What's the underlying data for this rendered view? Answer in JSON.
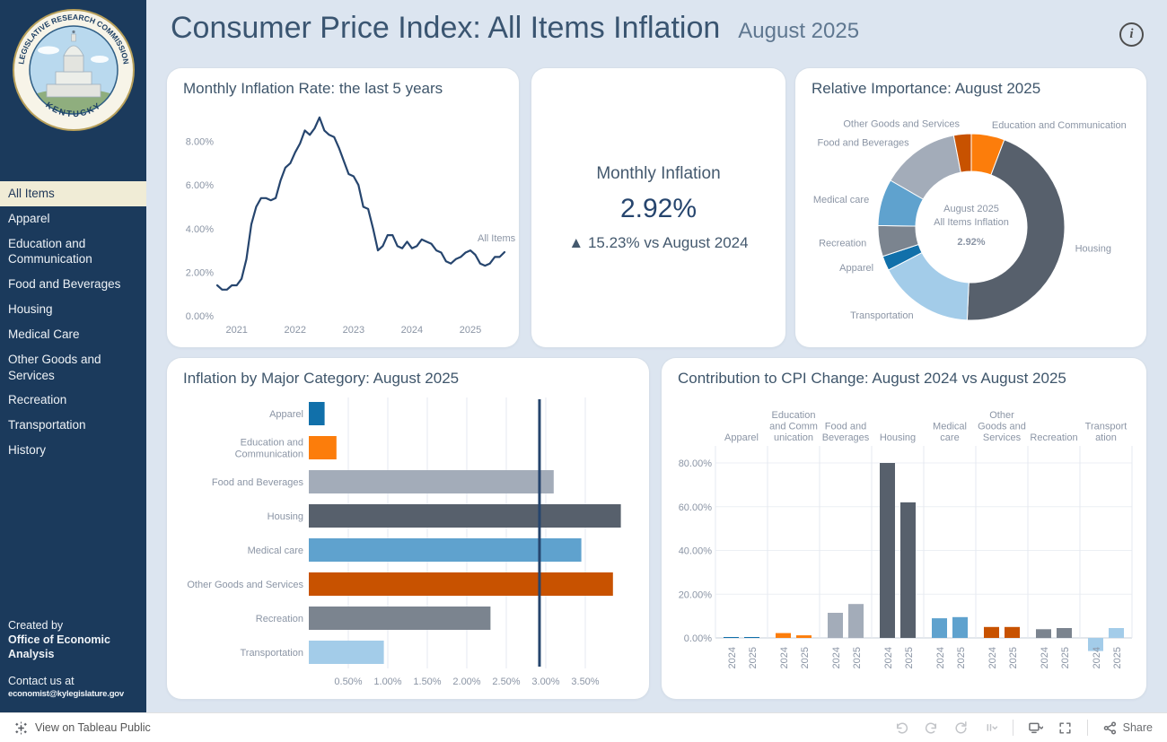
{
  "sidebar": {
    "logo": {
      "ring_text": "LEGISLATIVE RESEARCH COMMISSION",
      "bottom_text": "KENTUCKY"
    },
    "items": [
      {
        "label": "All Items",
        "selected": true
      },
      {
        "label": "Apparel",
        "selected": false
      },
      {
        "label": "Education and Communication",
        "selected": false
      },
      {
        "label": "Food and Beverages",
        "selected": false
      },
      {
        "label": "Housing",
        "selected": false
      },
      {
        "label": "Medical Care",
        "selected": false
      },
      {
        "label": "Other Goods and Services",
        "selected": false
      },
      {
        "label": "Recreation",
        "selected": false
      },
      {
        "label": "Transportation",
        "selected": false
      },
      {
        "label": "History",
        "selected": false
      }
    ],
    "created_by_label": "Created by",
    "created_by_org": "Office of Economic Analysis",
    "contact_label": "Contact us at",
    "contact_email": "economist@kylegislature.gov"
  },
  "header": {
    "title": "Consumer Price Index: All Items Inflation",
    "subtitle": "August 2025",
    "info_glyph": "i"
  },
  "kpi": {
    "title": "Monthly Inflation",
    "value": "2.92%",
    "delta": "▲ 15.23% vs August 2024"
  },
  "chart_data": [
    {
      "id": "monthly_rate",
      "type": "line",
      "title": "Monthly Inflation Rate: the last 5 years",
      "series_label": "All Items",
      "color": "#26456e",
      "x_start": "2020-09",
      "x_end": "2025-08",
      "ylim": [
        0,
        9.5
      ],
      "yticks": [
        0,
        2,
        4,
        6,
        8
      ],
      "ytick_labels": [
        "0.00%",
        "2.00%",
        "4.00%",
        "6.00%",
        "8.00%"
      ],
      "xtick_labels": [
        "2021",
        "2022",
        "2023",
        "2024",
        "2025"
      ],
      "xtick_month_index": [
        4,
        16,
        28,
        40,
        52
      ],
      "values": [
        1.4,
        1.2,
        1.2,
        1.4,
        1.4,
        1.7,
        2.6,
        4.2,
        5.0,
        5.4,
        5.4,
        5.3,
        5.4,
        6.2,
        6.8,
        7.0,
        7.5,
        7.9,
        8.5,
        8.3,
        8.6,
        9.1,
        8.5,
        8.3,
        8.2,
        7.7,
        7.1,
        6.5,
        6.4,
        6.0,
        5.0,
        4.9,
        4.0,
        3.0,
        3.2,
        3.7,
        3.7,
        3.2,
        3.1,
        3.4,
        3.1,
        3.2,
        3.5,
        3.4,
        3.3,
        3.0,
        2.9,
        2.5,
        2.4,
        2.6,
        2.7,
        2.9,
        3.0,
        2.8,
        2.4,
        2.3,
        2.4,
        2.7,
        2.7,
        2.92
      ]
    },
    {
      "id": "importance",
      "type": "pie",
      "title": "Relative Importance: August 2025",
      "center_label": [
        "August 2025",
        "All Items Inflation",
        "2.92%"
      ],
      "segments": [
        {
          "name": "Education and Communication",
          "value": 5.7,
          "color": "#fc7d0b"
        },
        {
          "name": "Housing",
          "value": 44.5,
          "color": "#57606c"
        },
        {
          "name": "Transportation",
          "value": 16.5,
          "color": "#a3cce9"
        },
        {
          "name": "Apparel",
          "value": 2.5,
          "color": "#1170aa"
        },
        {
          "name": "Recreation",
          "value": 5.3,
          "color": "#7b848f"
        },
        {
          "name": "Medical care",
          "value": 8.0,
          "color": "#5fa2ce"
        },
        {
          "name": "Food and Beverages",
          "value": 13.5,
          "color": "#a3acb9"
        },
        {
          "name": "Other Goods and Services",
          "value": 3.0,
          "color": "#c85200"
        }
      ]
    },
    {
      "id": "category",
      "type": "bar",
      "orientation": "horizontal",
      "title": "Inflation by Major Category: August 2025",
      "reference_line": 2.92,
      "xlim": [
        0,
        3.8
      ],
      "xticks": [
        0.5,
        1.0,
        1.5,
        2.0,
        2.5,
        3.0,
        3.5
      ],
      "xtick_labels": [
        "0.50%",
        "1.00%",
        "1.50%",
        "2.00%",
        "2.50%",
        "3.00%",
        "3.50%"
      ],
      "bars": [
        {
          "name": "Apparel",
          "value": 0.2,
          "color": "#1170aa",
          "label_lines": [
            "Apparel"
          ]
        },
        {
          "name": "Education and Communication",
          "value": 0.35,
          "color": "#fc7d0b",
          "label_lines": [
            "Education and",
            "Communication"
          ]
        },
        {
          "name": "Food and Beverages",
          "value": 3.1,
          "color": "#a3acb9",
          "label_lines": [
            "Food and Beverages"
          ]
        },
        {
          "name": "Housing",
          "value": 3.95,
          "color": "#57606c",
          "label_lines": [
            "Housing"
          ]
        },
        {
          "name": "Medical care",
          "value": 3.45,
          "color": "#5fa2ce",
          "label_lines": [
            "Medical care"
          ]
        },
        {
          "name": "Other Goods and Services",
          "value": 3.85,
          "color": "#c85200",
          "label_lines": [
            "Other Goods and Services"
          ]
        },
        {
          "name": "Recreation",
          "value": 2.3,
          "color": "#7b848f",
          "label_lines": [
            "Recreation"
          ]
        },
        {
          "name": "Transportation",
          "value": 0.95,
          "color": "#a3cce9",
          "label_lines": [
            "Transportation"
          ]
        }
      ]
    },
    {
      "id": "contribution",
      "type": "bar",
      "orientation": "vertical",
      "title": "Contribution to CPI Change: August 2024 vs August 2025",
      "categories": [
        "Apparel",
        "Education and Communication",
        "Food and Beverages",
        "Housing",
        "Medical care",
        "Other Goods and Services",
        "Recreation",
        "Transportation"
      ],
      "header_lines": [
        [
          "Apparel"
        ],
        [
          "Education",
          "and Comm",
          "unication"
        ],
        [
          "Food and",
          "Beverages"
        ],
        [
          "Housing"
        ],
        [
          "Medical",
          "care"
        ],
        [
          "Other",
          "Goods and",
          "Services"
        ],
        [
          "Recreation"
        ],
        [
          "Transport",
          "ation"
        ]
      ],
      "category_colors": [
        "#1170aa",
        "#fc7d0b",
        "#a3acb9",
        "#57606c",
        "#5fa2ce",
        "#c85200",
        "#7b848f",
        "#a3cce9"
      ],
      "series": [
        {
          "name": "2024",
          "values": [
            0.4,
            2.2,
            11.5,
            80,
            9,
            5,
            4,
            -6
          ]
        },
        {
          "name": "2025",
          "values": [
            0.4,
            1.2,
            15.5,
            62,
            9.5,
            5,
            4.5,
            4.5
          ]
        }
      ],
      "ylim": [
        -10,
        88
      ],
      "yticks": [
        0,
        20,
        40,
        60,
        80
      ],
      "ytick_labels": [
        "0.00%",
        "20.00%",
        "40.00%",
        "60.00%",
        "80.00%"
      ]
    }
  ],
  "footer": {
    "view_label": "View on Tableau Public",
    "share_label": "Share",
    "icons": [
      "undo",
      "redo",
      "replay",
      "pause",
      "divider",
      "device",
      "fullscreen",
      "divider",
      "share"
    ]
  },
  "colors": {
    "sidebar_bg": "#1b3a5c",
    "selected_item_bg": "#f0ecd6",
    "page_bg": "#dce5f0",
    "card_bg": "#ffffff",
    "title_text": "#3a5571",
    "line_series": "#26456e",
    "reference_line": "#26456e"
  }
}
